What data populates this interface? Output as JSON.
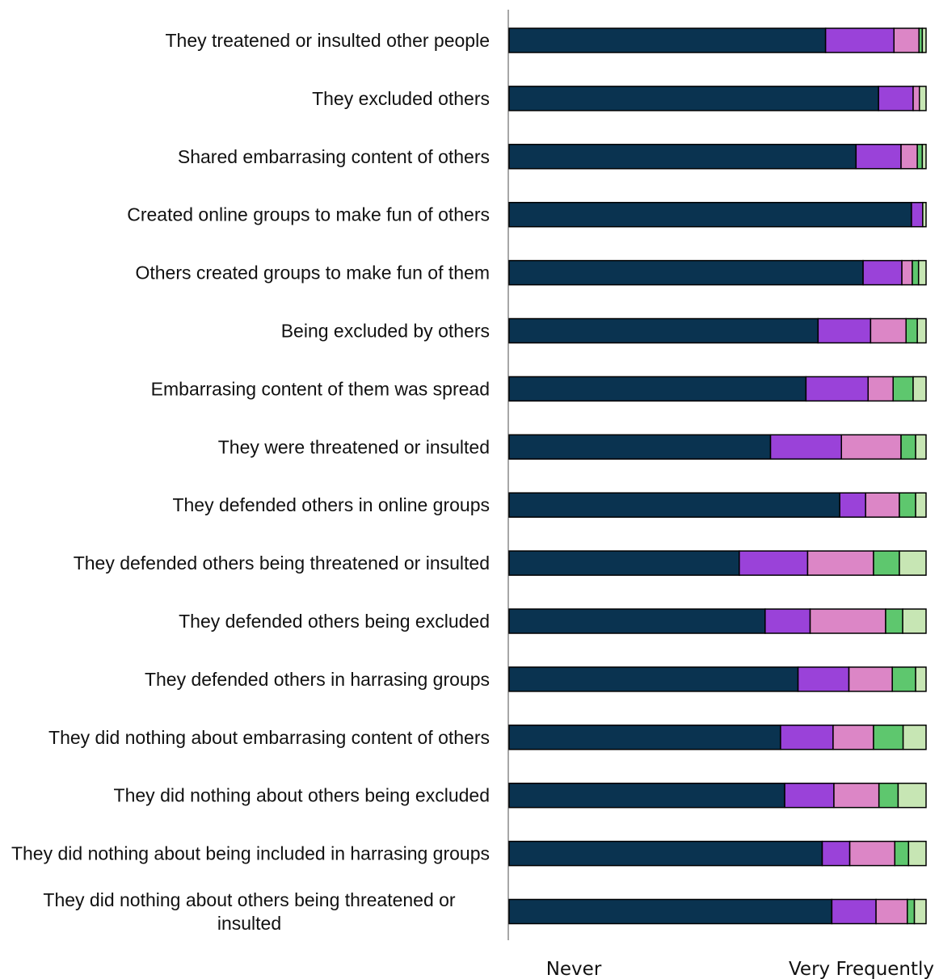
{
  "chart_data": {
    "type": "bar",
    "orientation": "horizontal",
    "stacked": true,
    "normalized_to": 100,
    "xlim": [
      0,
      100
    ],
    "title": "",
    "xlabel": "",
    "ylabel": "",
    "legend": "none",
    "grid": false,
    "scale_labels": {
      "left": "Never",
      "right": "Very Frequently"
    },
    "colors": [
      "#0a3350",
      "#9a42d9",
      "#dc86c6",
      "#5ec76e",
      "#c7e6b4"
    ],
    "categories": [
      "They treatened or insulted other people",
      "They excluded others",
      "Shared embarrasing content of others",
      "Created online groups to make fun of others",
      "Others created groups to make fun of them",
      "Being excluded by others",
      "Embarrasing content of them was spread",
      "They were threatened or insulted",
      "They defended others in online groups",
      "They defended others being threatened or insulted",
      "They defended others being excluded",
      "They defended others in harrasing groups",
      "They did nothing about embarrasing content of others",
      "They did nothing about others being excluded",
      "They did nothing about being included in harrasing groups",
      "They did nothing about others being threatened or insulted"
    ],
    "series": [
      {
        "values": [
          75.9,
          88.6,
          83.2,
          96.5,
          84.9,
          74.1,
          71.2,
          62.7,
          79.3,
          55.2,
          61.4,
          69.3,
          65.1,
          66.1,
          75.1,
          77.4
        ]
      },
      {
        "values": [
          16.4,
          8.3,
          10.8,
          2.7,
          9.3,
          12.6,
          14.9,
          17.0,
          6.2,
          16.4,
          10.8,
          12.2,
          12.6,
          11.8,
          6.6,
          10.6
        ]
      },
      {
        "values": [
          6.0,
          1.5,
          3.9,
          0.0,
          2.5,
          8.5,
          6.0,
          14.3,
          8.1,
          15.8,
          18.1,
          10.4,
          9.7,
          10.8,
          10.8,
          7.5
        ]
      },
      {
        "values": [
          0.8,
          0.0,
          1.2,
          0.0,
          1.5,
          2.7,
          4.8,
          3.5,
          3.9,
          6.2,
          4.1,
          5.6,
          7.1,
          4.6,
          3.3,
          1.7
        ]
      },
      {
        "values": [
          0.9,
          1.6,
          0.9,
          0.8,
          1.8,
          2.1,
          3.1,
          2.5,
          2.5,
          6.4,
          5.6,
          2.5,
          5.5,
          6.7,
          4.2,
          2.8
        ]
      }
    ]
  }
}
